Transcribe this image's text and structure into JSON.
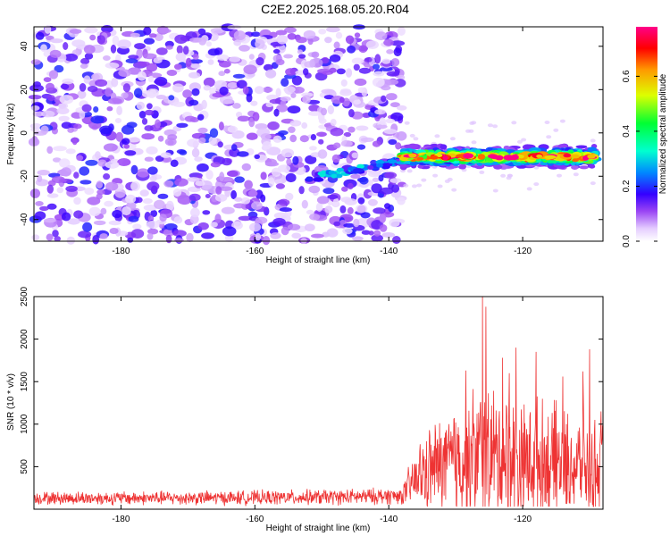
{
  "title": "C2E2.2025.168.05.20.R04",
  "chart_data": [
    {
      "type": "heatmap",
      "xlabel": "Height of straight line (km)",
      "ylabel": "Frequency (Hz)",
      "xlim": [
        -193,
        -108
      ],
      "ylim": [
        -50,
        49
      ],
      "xticks": [
        -180,
        -160,
        -140,
        -120
      ],
      "yticks": [
        -40,
        -20,
        0,
        20,
        40
      ],
      "colorbar": {
        "label": "Normalized spectral amplitude",
        "range": [
          0,
          0.78
        ],
        "ticks": [
          0.0,
          0.2,
          0.4,
          0.6
        ],
        "tick_labels": [
          "0.0",
          "0.2",
          "0.4",
          "0.6"
        ]
      },
      "signal_band": {
        "x_start": -138,
        "x_end": -109,
        "freq_center": -11,
        "freq_halfwidth": 4,
        "peak_amplitude": 0.7
      },
      "weak_band": {
        "x_start": -152,
        "x_end": -138,
        "freq_start": -21,
        "freq_end": -13,
        "amplitude": 0.3
      },
      "noise_region": {
        "x_start": -193,
        "x_end": -138,
        "amplitude_range": [
          0.03,
          0.2
        ]
      },
      "grid": false
    },
    {
      "type": "line",
      "xlabel": "Height of straight line (km)",
      "ylabel": "SNR (10 * v/v)",
      "xlim": [
        -193,
        -108
      ],
      "ylim": [
        0,
        2500
      ],
      "xticks": [
        -180,
        -160,
        -140,
        -120
      ],
      "yticks": [
        500,
        1000,
        1500,
        2000,
        2500
      ],
      "series_color": "#ee3333",
      "profile": {
        "x": [
          -193,
          -180,
          -160,
          -145,
          -138,
          -137,
          -135,
          -132,
          -130,
          -128,
          -126,
          -124,
          -122,
          -120,
          -118,
          -116,
          -114,
          -112,
          -110,
          -108
        ],
        "baseline": [
          130,
          130,
          135,
          145,
          160,
          260,
          420,
          520,
          560,
          600,
          640,
          600,
          620,
          560,
          580,
          540,
          520,
          500,
          480,
          460
        ],
        "amplitude": [
          90,
          95,
          100,
          110,
          120,
          280,
          520,
          700,
          820,
          900,
          1050,
          950,
          900,
          850,
          850,
          800,
          750,
          700,
          720,
          650
        ]
      },
      "peaks": [
        {
          "x": -126,
          "y": 2500
        },
        {
          "x": -125.5,
          "y": 2380
        },
        {
          "x": -121,
          "y": 1900
        },
        {
          "x": -123,
          "y": 1780
        },
        {
          "x": -118,
          "y": 1850
        },
        {
          "x": -128.5,
          "y": 1630
        },
        {
          "x": -122,
          "y": 1600
        },
        {
          "x": -114,
          "y": 1560
        },
        {
          "x": -110,
          "y": 1880
        },
        {
          "x": -111,
          "y": 1620
        },
        {
          "x": -131,
          "y": 1000
        },
        {
          "x": -133,
          "y": 890
        },
        {
          "x": -130,
          "y": 1020
        },
        {
          "x": -115,
          "y": 1280
        },
        {
          "x": -108.3,
          "y": 1150
        }
      ],
      "grid": false
    }
  ]
}
